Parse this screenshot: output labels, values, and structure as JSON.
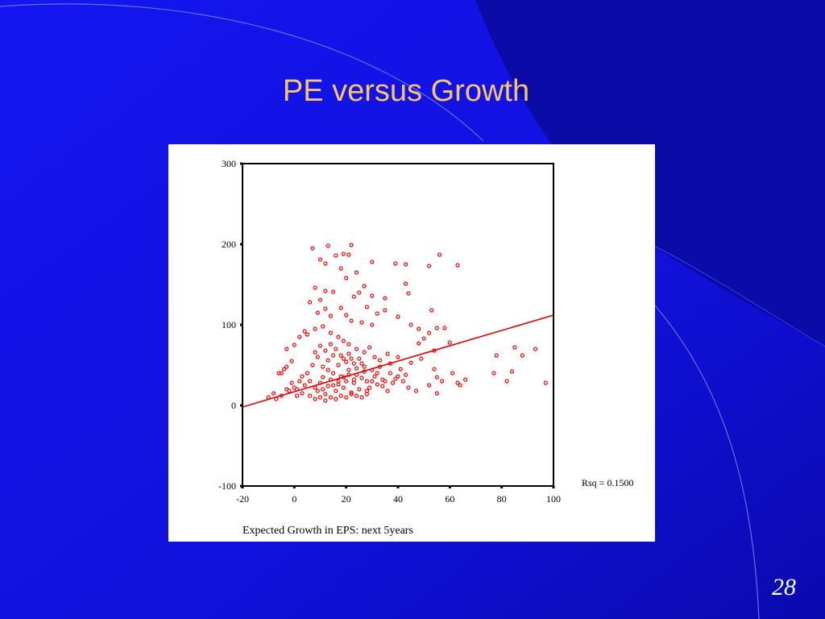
{
  "slide": {
    "title": "PE versus Growth",
    "page_number": "28"
  },
  "colors": {
    "background": "#1212E6",
    "background_dark": "#0A0AA6",
    "title": "#F5C56A",
    "points": "#FF0000",
    "fit_line": "#E60000"
  },
  "chart_data": {
    "type": "scatter",
    "title": "",
    "xlabel": "Expected Growth in EPS: next 5years",
    "ylabel": "",
    "xlim": [
      -20,
      100
    ],
    "ylim": [
      -100,
      300
    ],
    "x_ticks": [
      -20,
      0,
      20,
      40,
      60,
      80,
      100
    ],
    "y_ticks": [
      -100,
      0,
      100,
      200,
      300
    ],
    "x_tick_labels": [
      "-20",
      "0",
      "20",
      "40",
      "60",
      "80",
      "100"
    ],
    "y_tick_labels": [
      "-100",
      "0",
      "100",
      "200",
      "300"
    ],
    "annotation": "Rsq = 0.1500",
    "grid": false,
    "legend": "none",
    "fit_line": {
      "x": [
        -20,
        100
      ],
      "y": [
        -2,
        112
      ]
    },
    "series": [
      {
        "values": [
          [
            7,
            195
          ],
          [
            13,
            198
          ],
          [
            16,
            186
          ],
          [
            22,
            199
          ],
          [
            21,
            187
          ],
          [
            19,
            188
          ],
          [
            10,
            181
          ],
          [
            30,
            178
          ],
          [
            39,
            176
          ],
          [
            43,
            175
          ],
          [
            52,
            173
          ],
          [
            56,
            187
          ],
          [
            63,
            174
          ],
          [
            12,
            176
          ],
          [
            18,
            170
          ],
          [
            24,
            165
          ],
          [
            20,
            158
          ],
          [
            27,
            148
          ],
          [
            12,
            142
          ],
          [
            8,
            146
          ],
          [
            15,
            141
          ],
          [
            25,
            140
          ],
          [
            23,
            135
          ],
          [
            30,
            136
          ],
          [
            35,
            133
          ],
          [
            43,
            151
          ],
          [
            44,
            139
          ],
          [
            35,
            118
          ],
          [
            28,
            122
          ],
          [
            32,
            114
          ],
          [
            40,
            110
          ],
          [
            53,
            118
          ],
          [
            6,
            128
          ],
          [
            10,
            131
          ],
          [
            12,
            120
          ],
          [
            18,
            121
          ],
          [
            9,
            115
          ],
          [
            14,
            111
          ],
          [
            20,
            112
          ],
          [
            22,
            105
          ],
          [
            26,
            103
          ],
          [
            30,
            100
          ],
          [
            45,
            100
          ],
          [
            55,
            96
          ],
          [
            58,
            96
          ],
          [
            48,
            95
          ],
          [
            52,
            90
          ],
          [
            50,
            83
          ],
          [
            48,
            77
          ],
          [
            60,
            78
          ],
          [
            54,
            68
          ],
          [
            49,
            58
          ],
          [
            45,
            53
          ],
          [
            40,
            60
          ],
          [
            36,
            64
          ],
          [
            -3,
            70
          ],
          [
            78,
            62
          ],
          [
            85,
            72
          ],
          [
            88,
            62
          ],
          [
            93,
            70
          ],
          [
            77,
            40
          ],
          [
            84,
            42
          ],
          [
            82,
            30
          ],
          [
            97,
            28
          ],
          [
            54,
            45
          ],
          [
            57,
            30
          ],
          [
            63,
            28
          ],
          [
            64,
            25
          ],
          [
            61,
            40
          ],
          [
            55,
            35
          ],
          [
            52,
            25
          ],
          [
            44,
            22
          ],
          [
            47,
            18
          ],
          [
            55,
            15
          ],
          [
            66,
            32
          ],
          [
            -6,
            40
          ],
          [
            -4,
            45
          ],
          [
            -5,
            40
          ],
          [
            -3,
            48
          ],
          [
            -1,
            55
          ],
          [
            0,
            75
          ],
          [
            2,
            85
          ],
          [
            4,
            92
          ],
          [
            5,
            88
          ],
          [
            8,
            95
          ],
          [
            11,
            98
          ],
          [
            14,
            90
          ],
          [
            17,
            85
          ],
          [
            19,
            80
          ],
          [
            21,
            76
          ],
          [
            24,
            70
          ],
          [
            27,
            66
          ],
          [
            29,
            72
          ],
          [
            31,
            60
          ],
          [
            33,
            56
          ],
          [
            37,
            52
          ],
          [
            41,
            45
          ],
          [
            43,
            38
          ],
          [
            39,
            33
          ],
          [
            35,
            30
          ],
          [
            32,
            26
          ],
          [
            29,
            22
          ],
          [
            -10,
            10
          ],
          [
            -7,
            8
          ],
          [
            -8,
            15
          ],
          [
            -5,
            12
          ],
          [
            -2,
            18
          ],
          [
            1,
            20
          ],
          [
            3,
            15
          ],
          [
            4,
            25
          ],
          [
            6,
            30
          ],
          [
            8,
            22
          ],
          [
            9,
            18
          ],
          [
            10,
            28
          ],
          [
            11,
            35
          ],
          [
            12,
            14
          ],
          [
            13,
            24
          ],
          [
            14,
            32
          ],
          [
            15,
            40
          ],
          [
            16,
            18
          ],
          [
            17,
            26
          ],
          [
            18,
            36
          ],
          [
            19,
            22
          ],
          [
            20,
            30
          ],
          [
            21,
            44
          ],
          [
            22,
            16
          ],
          [
            23,
            28
          ],
          [
            24,
            38
          ],
          [
            25,
            20
          ],
          [
            26,
            34
          ],
          [
            27,
            42
          ],
          [
            28,
            18
          ],
          [
            30,
            30
          ],
          [
            32,
            40
          ],
          [
            34,
            24
          ],
          [
            36,
            18
          ],
          [
            5,
            40
          ],
          [
            7,
            50
          ],
          [
            9,
            60
          ],
          [
            11,
            48
          ],
          [
            13,
            56
          ],
          [
            15,
            62
          ],
          [
            17,
            50
          ],
          [
            19,
            58
          ],
          [
            21,
            64
          ],
          [
            23,
            52
          ],
          [
            25,
            58
          ],
          [
            27,
            48
          ],
          [
            6,
            12
          ],
          [
            8,
            8
          ],
          [
            10,
            10
          ],
          [
            12,
            6
          ],
          [
            14,
            10
          ],
          [
            16,
            8
          ],
          [
            18,
            12
          ],
          [
            20,
            10
          ],
          [
            22,
            14
          ],
          [
            24,
            12
          ],
          [
            26,
            10
          ],
          [
            28,
            14
          ],
          [
            2,
            30
          ],
          [
            0,
            22
          ],
          [
            -1,
            28
          ],
          [
            3,
            36
          ],
          [
            1,
            12
          ],
          [
            -3,
            20
          ],
          [
            16,
            70
          ],
          [
            18,
            62
          ],
          [
            20,
            54
          ],
          [
            14,
            76
          ],
          [
            12,
            68
          ],
          [
            10,
            74
          ],
          [
            8,
            66
          ],
          [
            22,
            58
          ],
          [
            24,
            46
          ],
          [
            26,
            52
          ],
          [
            28,
            30
          ],
          [
            30,
            44
          ],
          [
            31,
            36
          ],
          [
            33,
            48
          ],
          [
            34,
            32
          ],
          [
            37,
            40
          ],
          [
            38,
            28
          ],
          [
            40,
            36
          ],
          [
            42,
            30
          ],
          [
            15,
            25
          ],
          [
            17,
            30
          ],
          [
            19,
            35
          ],
          [
            21,
            38
          ],
          [
            23,
            32
          ],
          [
            13,
            44
          ],
          [
            11,
            20
          ]
        ]
      }
    ]
  }
}
